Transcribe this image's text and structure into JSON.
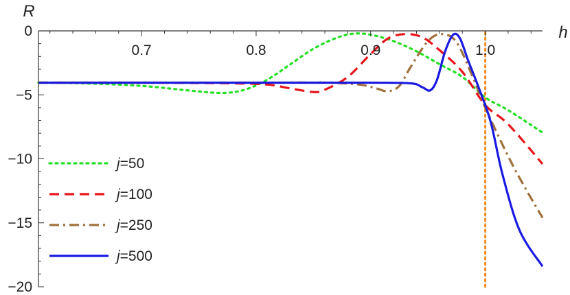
{
  "chart_data": {
    "type": "line",
    "xlabel": "h",
    "ylabel": "R",
    "xlim": [
      0.61,
      1.05
    ],
    "ylim": [
      -20,
      0
    ],
    "xticks": [
      {
        "value": 0.7,
        "label": "0.7"
      },
      {
        "value": 0.8,
        "label": "0.8"
      },
      {
        "value": 0.9,
        "label": "0.9"
      },
      {
        "value": 1.0,
        "label": "1.0"
      }
    ],
    "yticks": [
      {
        "value": 0,
        "label": "0"
      },
      {
        "value": -5,
        "label": "-5"
      },
      {
        "value": -10,
        "label": "-10"
      },
      {
        "value": -15,
        "label": "-15"
      },
      {
        "value": -20,
        "label": "-20"
      }
    ],
    "vertical_line": {
      "x": 1.0,
      "color": "#f28c1c",
      "style": "dotted"
    },
    "legend_position": "bottom-left",
    "series": [
      {
        "name": "j=50",
        "legend_var": "j",
        "legend_value": "=50",
        "color": "#22e022",
        "dash": "dotted",
        "points": [
          [
            0.61,
            -4.05
          ],
          [
            0.65,
            -4.1
          ],
          [
            0.7,
            -4.3
          ],
          [
            0.74,
            -4.65
          ],
          [
            0.77,
            -4.85
          ],
          [
            0.79,
            -4.6
          ],
          [
            0.81,
            -3.8
          ],
          [
            0.83,
            -2.6
          ],
          [
            0.85,
            -1.4
          ],
          [
            0.87,
            -0.55
          ],
          [
            0.885,
            -0.22
          ],
          [
            0.9,
            -0.3
          ],
          [
            0.92,
            -0.8
          ],
          [
            0.94,
            -1.6
          ],
          [
            0.96,
            -2.6
          ],
          [
            0.98,
            -3.6
          ],
          [
            1.0,
            -5.2
          ],
          [
            1.02,
            -6.2
          ],
          [
            1.05,
            -7.95
          ]
        ]
      },
      {
        "name": "j=100",
        "legend_var": "j",
        "legend_value": "=100",
        "color": "#e8141c",
        "dash": "dashed",
        "points": [
          [
            0.61,
            -4.05
          ],
          [
            0.7,
            -4.05
          ],
          [
            0.78,
            -4.1
          ],
          [
            0.81,
            -4.2
          ],
          [
            0.83,
            -4.5
          ],
          [
            0.85,
            -4.78
          ],
          [
            0.86,
            -4.6
          ],
          [
            0.88,
            -3.6
          ],
          [
            0.9,
            -1.8
          ],
          [
            0.915,
            -0.6
          ],
          [
            0.93,
            -0.25
          ],
          [
            0.945,
            -0.5
          ],
          [
            0.96,
            -1.5
          ],
          [
            0.98,
            -3.2
          ],
          [
            1.0,
            -5.8
          ],
          [
            1.02,
            -7.3
          ],
          [
            1.05,
            -10.4
          ]
        ]
      },
      {
        "name": "j=250",
        "legend_var": "j",
        "legend_value": "=250",
        "color": "#a0703c",
        "dash": "dashdot",
        "points": [
          [
            0.61,
            -4.05
          ],
          [
            0.8,
            -4.05
          ],
          [
            0.86,
            -4.05
          ],
          [
            0.89,
            -4.2
          ],
          [
            0.905,
            -4.5
          ],
          [
            0.915,
            -4.72
          ],
          [
            0.925,
            -4.3
          ],
          [
            0.935,
            -2.8
          ],
          [
            0.95,
            -0.8
          ],
          [
            0.962,
            -0.25
          ],
          [
            0.975,
            -0.9
          ],
          [
            0.99,
            -3.8
          ],
          [
            1.0,
            -6.0
          ],
          [
            1.02,
            -9.8
          ],
          [
            1.035,
            -12.3
          ],
          [
            1.05,
            -14.6
          ]
        ]
      },
      {
        "name": "j=500",
        "legend_var": "j",
        "legend_value": "=500",
        "color": "#1a1ae0",
        "dash": "solid",
        "points": [
          [
            0.61,
            -4.05
          ],
          [
            0.8,
            -4.05
          ],
          [
            0.9,
            -4.05
          ],
          [
            0.935,
            -4.1
          ],
          [
            0.945,
            -4.4
          ],
          [
            0.952,
            -4.65
          ],
          [
            0.958,
            -3.8
          ],
          [
            0.965,
            -1.6
          ],
          [
            0.972,
            -0.3
          ],
          [
            0.978,
            -0.6
          ],
          [
            0.985,
            -2.3
          ],
          [
            0.995,
            -4.6
          ],
          [
            1.005,
            -7.2
          ],
          [
            1.015,
            -11.2
          ],
          [
            1.03,
            -15.6
          ],
          [
            1.05,
            -18.4
          ]
        ]
      }
    ]
  }
}
